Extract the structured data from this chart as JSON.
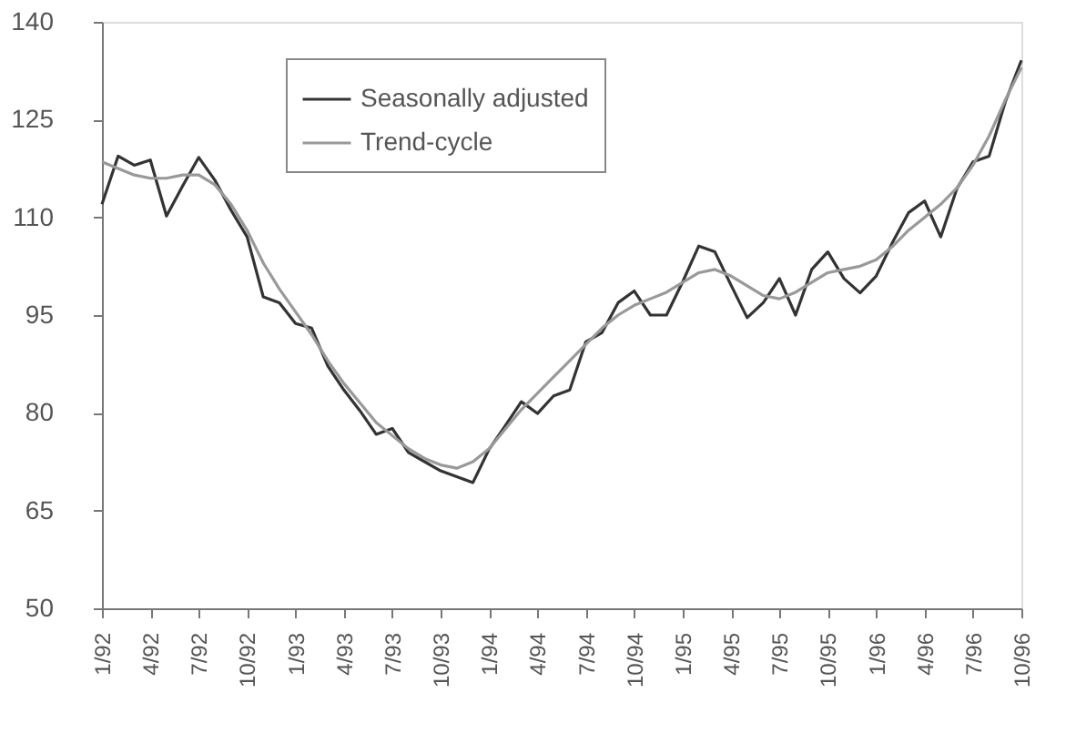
{
  "chart_data": {
    "type": "line",
    "categories": [
      "1/92",
      null,
      null,
      "4/92",
      null,
      null,
      "7/92",
      null,
      null,
      "10/92",
      null,
      null,
      "1/93",
      null,
      null,
      "4/93",
      null,
      null,
      "7/93",
      null,
      null,
      "10/93",
      null,
      null,
      "1/94",
      null,
      null,
      "4/94",
      null,
      null,
      "7/94",
      null,
      null,
      "10/94",
      null,
      null,
      "1/95",
      null,
      null,
      "4/95",
      null,
      null,
      "7/95",
      null,
      null,
      "10/95",
      null,
      null,
      "1/96",
      null,
      null,
      "4/96",
      null,
      null,
      "7/96",
      null,
      null,
      "10/96"
    ],
    "series": [
      {
        "name": "Seasonally adjusted",
        "color": "#333333",
        "values": [
          112,
          119.4,
          118,
          118.8,
          110.2,
          114.8,
          119.2,
          115.7,
          111.1,
          107,
          97.8,
          96.9,
          93.7,
          93,
          87.2,
          83.5,
          80.3,
          76.7,
          77.6,
          73.9,
          72.5,
          71.1,
          70.2,
          69.3,
          74.4,
          78,
          81.7,
          79.9,
          82.6,
          83.5,
          90.9,
          92.3,
          96.9,
          98.7,
          95,
          95,
          100.1,
          105.6,
          104.7,
          99.6,
          94.6,
          96.9,
          100.6,
          95,
          102,
          104.7,
          100.6,
          98.4,
          101,
          106.1,
          110.7,
          112.5,
          107,
          114.4,
          118.5,
          119.4,
          127.7,
          134.1
        ]
      },
      {
        "name": "Trend-cycle",
        "color": "#999999",
        "values": [
          118.5,
          117.5,
          116.5,
          116,
          116,
          116.5,
          116.5,
          115,
          112,
          108,
          103,
          99,
          95.5,
          92,
          88,
          84.5,
          81.5,
          78.5,
          76.5,
          74.5,
          73,
          72,
          71.5,
          72.5,
          74.5,
          77.5,
          80.5,
          83,
          85.5,
          88,
          90.5,
          93,
          95,
          96.5,
          97.5,
          98.5,
          100,
          101.5,
          102,
          101,
          99.5,
          98,
          97.5,
          98.5,
          100,
          101.5,
          102,
          102.5,
          103.5,
          105.5,
          108,
          110,
          112,
          114.5,
          118,
          122.5,
          128,
          133
        ]
      }
    ],
    "ylim": [
      50,
      140
    ],
    "yticks": [
      50,
      65,
      80,
      95,
      110,
      125,
      140
    ],
    "grid": false,
    "legend": "top",
    "line_style": "solid",
    "marker": "none"
  }
}
